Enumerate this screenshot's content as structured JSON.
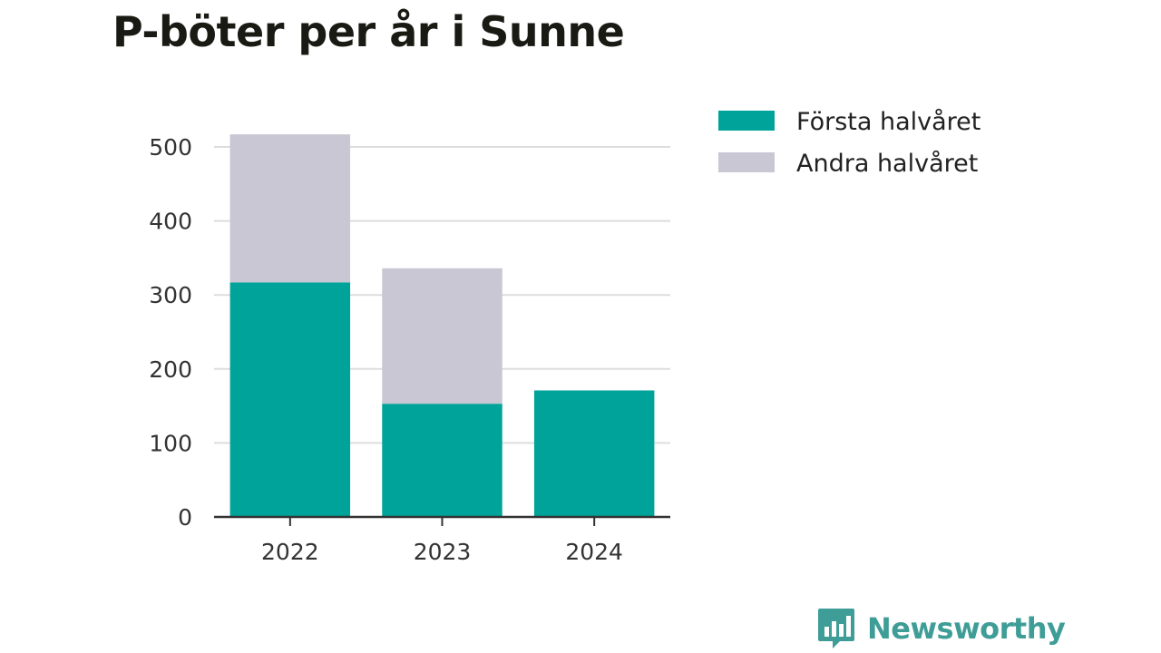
{
  "colors": {
    "series1": "#00a39a",
    "series2": "#c8c7d3",
    "grid": "#dddddd",
    "axis": "#333333",
    "brand": "#3f9d97"
  },
  "brand": {
    "name": "Newsworthy",
    "icon": "bar-chart-speech-icon"
  },
  "chart_data": {
    "type": "bar",
    "stacked": true,
    "title": "P-böter per år i Sunne",
    "xlabel": "",
    "ylabel": "",
    "categories": [
      "2022",
      "2023",
      "2024"
    ],
    "series": [
      {
        "name": "Första halvåret",
        "values": [
          317,
          153,
          171
        ]
      },
      {
        "name": "Andra halvåret",
        "values": [
          200,
          183,
          0
        ]
      }
    ],
    "ylim": [
      0,
      500
    ],
    "yticks": [
      0,
      100,
      200,
      300,
      400,
      500
    ],
    "grid": true,
    "legend": "top-right"
  }
}
